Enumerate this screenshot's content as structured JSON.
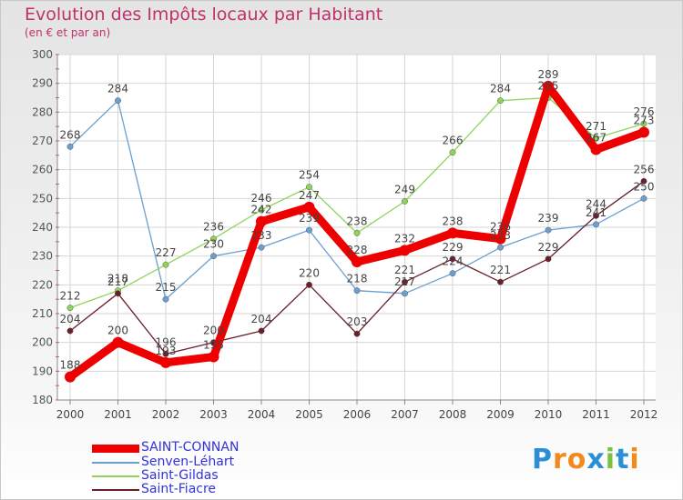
{
  "title": "Evolution des Impôts locaux par Habitant",
  "subtitle": "(en € et par an)",
  "logo": {
    "letters": [
      "P",
      "r",
      "o",
      "x",
      "i",
      "t",
      "i"
    ],
    "colors": [
      "#2a8fd6",
      "#f08a1c",
      "#f08a1c",
      "#2a8fd6",
      "#7ac143",
      "#2a8fd6",
      "#f08a1c"
    ]
  },
  "chart_data": {
    "type": "line",
    "title": "Evolution des Impôts locaux par Habitant",
    "subtitle": "(en € et par an)",
    "xlabel": "",
    "ylabel": "",
    "ylim": [
      180,
      300
    ],
    "yticks": [
      180,
      190,
      200,
      210,
      220,
      230,
      240,
      250,
      260,
      270,
      280,
      290,
      300
    ],
    "categories": [
      "2000",
      "2001",
      "2002",
      "2003",
      "2004",
      "2005",
      "2006",
      "2007",
      "2008",
      "2009",
      "2010",
      "2011",
      "2012"
    ],
    "grid": true,
    "legend_position": "bottom-left",
    "series": [
      {
        "name": "SAINT-CONNAN",
        "color": "#ee0000",
        "values": [
          188,
          200,
          193,
          195,
          242,
          247,
          228,
          232,
          238,
          236,
          289,
          267,
          273
        ],
        "labels": [
          "188",
          "200",
          "193",
          "195",
          "242",
          "247",
          "228",
          "232",
          "238",
          "236",
          "289",
          "267",
          "273"
        ],
        "emphasis": true
      },
      {
        "name": "Senven-Léhart",
        "color": "#6a9fd0",
        "values": [
          268,
          284,
          215,
          230,
          233,
          239,
          218,
          217,
          224,
          233,
          239,
          241,
          250
        ],
        "labels": [
          "268",
          "284",
          "215",
          "230",
          "233",
          "239",
          "218",
          "217",
          "224",
          "233",
          "239",
          "241",
          "250"
        ]
      },
      {
        "name": "Saint-Gildas",
        "color": "#8fd45a",
        "values": [
          212,
          218,
          227,
          236,
          246,
          254,
          238,
          249,
          266,
          284,
          285,
          271,
          276
        ],
        "labels": [
          "212",
          "218",
          "227",
          "236",
          "246",
          "254",
          "238",
          "249",
          "266",
          "284",
          "285",
          "271",
          "276"
        ]
      },
      {
        "name": "Saint-Fiacre",
        "color": "#6b1e2a",
        "values": [
          204,
          217,
          196,
          200,
          204,
          220,
          203,
          221,
          229,
          221,
          229,
          244,
          256
        ],
        "labels": [
          "204",
          "217",
          "196",
          "200",
          "204",
          "220",
          "203",
          "221",
          "229",
          "221",
          "229",
          "244",
          "256"
        ]
      }
    ]
  }
}
